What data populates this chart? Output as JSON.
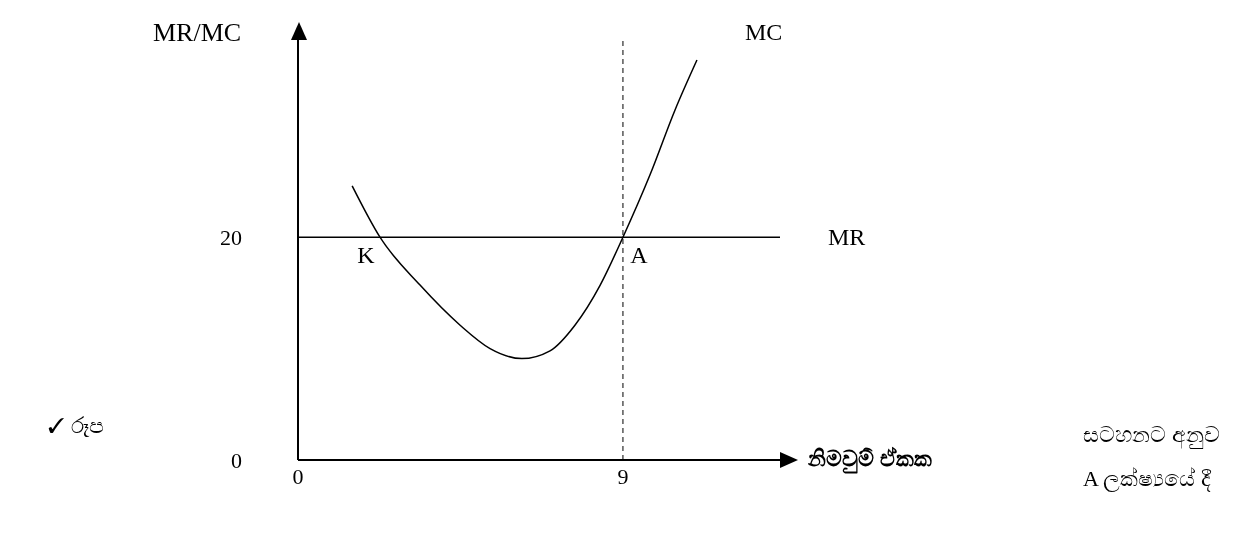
{
  "chart_data": {
    "type": "line",
    "xlabel": "නිමවුම් ඒකක",
    "ylabel": "MR/MC",
    "xlim": [
      0,
      13.35
    ],
    "ylim": [
      0,
      37.7
    ],
    "xticks": [
      0,
      9
    ],
    "yticks": [
      0,
      20
    ],
    "grid": false,
    "legend": false,
    "marker": "none",
    "line_style": "solid",
    "series": [
      {
        "name": "MC",
        "color": "#000000",
        "x": [
          1.5,
          2.27,
          3.38,
          4.49,
          5.32,
          6.2,
          6.98,
          7.67,
          8.37,
          9.0,
          9.75,
          10.44,
          11.05
        ],
        "values": [
          24.6,
          20.0,
          15.7,
          12.1,
          10.0,
          9.1,
          9.8,
          12.1,
          15.7,
          20.0,
          25.6,
          31.4,
          35.9
        ]
      },
      {
        "name": "MR",
        "color": "#000000",
        "x": [
          0,
          13.35
        ],
        "values": [
          20,
          20
        ]
      }
    ],
    "ref_lines": [
      {
        "axis": "x",
        "value": 9,
        "line_style": "dashed",
        "color": "#000000"
      }
    ],
    "annotations": [
      {
        "text": "K",
        "x": 2.27,
        "y": 20
      },
      {
        "text": "A",
        "x": 9,
        "y": 20
      },
      "✓ රූප",
      "සටහනට අනුව A ලක්ෂ්‍යයේ දී"
    ]
  }
}
